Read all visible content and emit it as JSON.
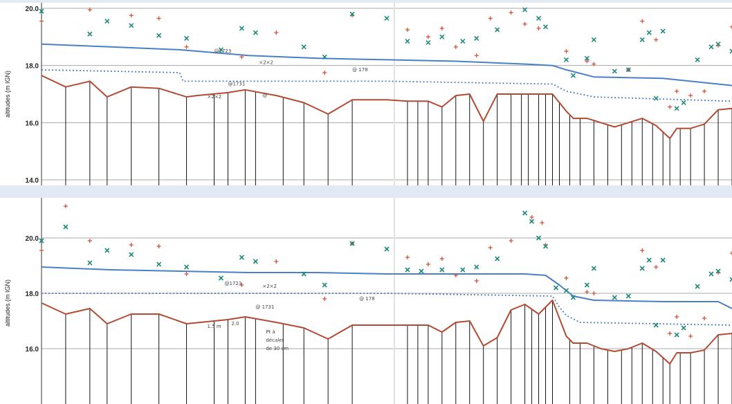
{
  "colors": {
    "background": "#e3e9f3",
    "water_line": "#4a7fc4",
    "dotted_line": "#4a7fc4",
    "ground": "#b24a32",
    "plus_marker": "#d2533a",
    "x_marker": "#1f8a7a",
    "grid": "#a8a8a8",
    "pile": "#111111"
  },
  "chart_data": [
    {
      "type": "line",
      "ylabel": "altitudes (m IGN)",
      "yticks": [
        "14.0",
        "16.0",
        "18.0",
        "20.0"
      ],
      "ylim": [
        14,
        20
      ],
      "xlim": [
        0,
        100
      ],
      "grid": true,
      "series": [
        {
          "style": "solid",
          "color": "#4a7fc4",
          "x": [
            0,
            10,
            20,
            30,
            40,
            50,
            60,
            70,
            74,
            76,
            80,
            90,
            100
          ],
          "y": [
            18.75,
            18.65,
            18.55,
            18.35,
            18.25,
            18.2,
            18.15,
            18.05,
            18.0,
            17.85,
            17.6,
            17.55,
            17.3
          ]
        },
        {
          "style": "dotted",
          "color": "#4a7fc4",
          "x": [
            0,
            20,
            20.5,
            50,
            74,
            76,
            80,
            100
          ],
          "y": [
            17.85,
            17.75,
            17.45,
            17.45,
            17.35,
            17.1,
            16.9,
            16.75
          ]
        },
        {
          "style": "solid",
          "color": "#b24a32",
          "x": [
            0,
            3.5,
            7,
            9.5,
            13,
            17,
            21,
            22.5,
            27,
            29.5,
            34,
            38,
            41.5,
            45,
            50,
            53,
            56,
            58,
            60,
            62,
            64,
            66,
            68,
            70,
            72,
            74,
            76,
            77,
            79,
            81,
            83,
            85,
            87,
            89,
            91,
            92,
            94,
            96,
            98,
            100
          ],
          "y": [
            17.65,
            17.25,
            17.45,
            16.9,
            17.25,
            17.2,
            16.9,
            16.95,
            17.05,
            17.15,
            16.95,
            16.7,
            16.3,
            16.8,
            16.8,
            16.75,
            16.75,
            16.55,
            16.95,
            17.0,
            16.05,
            17.0,
            17.0,
            17.0,
            17.0,
            17.0,
            16.4,
            16.15,
            16.15,
            16.0,
            15.85,
            16.0,
            16.15,
            15.9,
            15.45,
            15.8,
            15.8,
            15.95,
            16.45,
            16.5
          ]
        }
      ],
      "markers": {
        "plus": {
          "color": "#d2533a",
          "x": [
            0,
            7,
            13,
            17,
            21,
            29,
            34,
            41,
            45,
            53,
            56,
            58,
            60,
            63,
            65,
            68,
            70,
            72,
            76,
            79,
            80,
            85,
            87,
            89,
            91,
            92,
            94,
            96,
            98,
            100
          ],
          "y": [
            19.55,
            19.95,
            19.75,
            19.65,
            18.65,
            18.3,
            19.15,
            17.75,
            19.75,
            19.25,
            19.0,
            19.3,
            18.65,
            18.35,
            19.65,
            19.85,
            19.45,
            19.3,
            18.5,
            18.15,
            18.05,
            17.85,
            19.55,
            18.9,
            16.55,
            17.1,
            16.95,
            17.1,
            18.7,
            19.35
          ]
        },
        "x": {
          "color": "#1f8a7a",
          "x": [
            0,
            7,
            9.5,
            13,
            17,
            21,
            26,
            29,
            31,
            38,
            41,
            45,
            50,
            53,
            56,
            58,
            61,
            63,
            66,
            70,
            72,
            73,
            76,
            77,
            79,
            80,
            83,
            85,
            87,
            88,
            89,
            90,
            92,
            93,
            95,
            97,
            98,
            100
          ],
          "y": [
            19.9,
            19.1,
            19.55,
            19.4,
            19.05,
            18.95,
            18.55,
            19.3,
            19.15,
            18.65,
            18.3,
            19.8,
            19.65,
            18.85,
            18.8,
            19.0,
            18.85,
            18.95,
            19.25,
            19.95,
            19.65,
            19.35,
            18.2,
            17.65,
            18.25,
            18.9,
            17.8,
            17.85,
            18.9,
            19.15,
            16.85,
            19.2,
            16.5,
            16.7,
            18.2,
            18.65,
            18.75,
            18.5
          ]
        }
      },
      "piles": {
        "x": [
          3.5,
          7,
          9.5,
          13,
          17,
          21,
          25,
          27,
          29.5,
          31,
          35,
          38,
          41.5,
          45,
          53,
          54.5,
          56,
          58,
          60,
          62,
          64,
          66,
          68,
          69.5,
          70.5,
          72,
          73,
          74,
          75,
          76.5,
          78,
          80,
          82,
          84,
          85.5,
          87,
          88.5,
          90,
          91,
          92.5,
          94,
          96,
          98,
          100
        ],
        "bottom": 14.0
      },
      "annotations": [
        {
          "x": 25,
          "y": 18.45,
          "text": "@1723"
        },
        {
          "x": 31.5,
          "y": 18.05,
          "text": "×2×2"
        },
        {
          "x": 45,
          "y": 17.8,
          "text": "@ 178"
        },
        {
          "x": 24,
          "y": 16.85,
          "text": "×2×2"
        },
        {
          "x": 27,
          "y": 17.3,
          "text": "@1731"
        },
        {
          "x": 32,
          "y": 16.9,
          "text": "@"
        }
      ]
    },
    {
      "type": "line",
      "ylabel": "altitudes (m IGN)",
      "yticks": [
        "16.0",
        "18.0",
        "20.0"
      ],
      "ylim": [
        14,
        21.3
      ],
      "xlim": [
        0,
        100
      ],
      "grid": true,
      "series": [
        {
          "style": "solid",
          "color": "#4a7fc4",
          "x": [
            0,
            10,
            20,
            30,
            40,
            50,
            60,
            70,
            73,
            75,
            77,
            80,
            90,
            98,
            100
          ],
          "y": [
            18.95,
            18.85,
            18.8,
            18.75,
            18.75,
            18.7,
            18.7,
            18.7,
            18.65,
            18.3,
            17.9,
            17.75,
            17.7,
            17.7,
            17.45
          ]
        },
        {
          "style": "dotted",
          "color": "#4a7fc4",
          "x": [
            0,
            50,
            74,
            75,
            76,
            78,
            100
          ],
          "y": [
            18.0,
            18.0,
            17.9,
            17.5,
            17.2,
            16.95,
            16.85
          ]
        },
        {
          "style": "solid",
          "color": "#b24a32",
          "x": [
            0,
            3.5,
            7,
            9.5,
            13,
            17,
            21,
            27,
            29.5,
            34,
            38,
            41.5,
            45,
            50,
            53,
            56,
            58,
            60,
            62,
            64,
            66,
            68,
            70,
            72,
            74,
            76,
            77,
            79,
            81,
            83,
            85,
            87,
            89,
            91,
            92,
            94,
            96,
            98,
            100
          ],
          "y": [
            17.65,
            17.25,
            17.45,
            16.9,
            17.25,
            17.25,
            16.9,
            17.05,
            17.15,
            16.95,
            16.75,
            16.35,
            16.85,
            16.85,
            16.85,
            16.85,
            16.6,
            16.95,
            17.0,
            16.1,
            16.4,
            17.4,
            17.6,
            17.25,
            17.75,
            16.45,
            16.2,
            16.2,
            16.0,
            15.9,
            16.0,
            16.2,
            15.9,
            15.45,
            15.85,
            15.85,
            15.95,
            16.5,
            16.55
          ]
        }
      ],
      "markers": {
        "plus": {
          "color": "#d2533a",
          "x": [
            0,
            3.5,
            7,
            13,
            17,
            21,
            29,
            34,
            41,
            45,
            53,
            56,
            58,
            60,
            63,
            65,
            68,
            71,
            72.5,
            73,
            76,
            79,
            80,
            87,
            89,
            91,
            92,
            94,
            96,
            98,
            100
          ],
          "y": [
            19.55,
            21.15,
            19.9,
            19.75,
            19.7,
            18.7,
            18.3,
            19.15,
            17.8,
            19.8,
            19.3,
            19.05,
            19.25,
            18.65,
            18.45,
            19.65,
            19.9,
            20.75,
            20.55,
            19.75,
            18.55,
            18.05,
            18.0,
            19.55,
            18.95,
            16.55,
            17.15,
            16.45,
            17.1,
            18.75,
            19.45
          ]
        },
        "x": {
          "color": "#1f8a7a",
          "x": [
            0,
            3.5,
            7,
            9.5,
            13,
            17,
            21,
            26,
            29,
            31,
            38,
            41,
            45,
            50,
            53,
            55,
            58,
            61,
            63,
            66,
            70,
            71,
            72,
            73,
            74.5,
            76,
            77,
            79,
            80,
            83,
            85,
            87,
            88,
            89,
            90,
            92,
            93,
            95,
            97,
            98,
            100
          ],
          "y": [
            19.9,
            20.4,
            19.1,
            19.55,
            19.4,
            19.05,
            18.95,
            18.55,
            19.3,
            19.15,
            18.7,
            18.3,
            19.8,
            19.6,
            18.85,
            18.8,
            18.85,
            18.85,
            18.95,
            19.25,
            20.9,
            20.6,
            20.0,
            19.7,
            18.2,
            18.1,
            17.85,
            18.3,
            18.9,
            17.85,
            17.9,
            18.9,
            19.2,
            16.85,
            19.2,
            16.5,
            16.75,
            18.25,
            18.7,
            18.8,
            18.5
          ]
        }
      },
      "piles": {
        "x": [
          3.5,
          7,
          9.5,
          13,
          17,
          21,
          25,
          27,
          29.5,
          31,
          35,
          38,
          41.5,
          45,
          53,
          54.5,
          56,
          58,
          60,
          62,
          64,
          66,
          68,
          70,
          71,
          72,
          73,
          74,
          76.5,
          78,
          80,
          82,
          84,
          85.5,
          87,
          88.5,
          90,
          91,
          92.5,
          94,
          96,
          98,
          100
        ],
        "bottom": 14.0
      },
      "annotations": [
        {
          "x": 26.5,
          "y": 18.3,
          "text": "@1723"
        },
        {
          "x": 32,
          "y": 18.2,
          "text": "×2×2"
        },
        {
          "x": 46,
          "y": 17.75,
          "text": "@ 178"
        },
        {
          "x": 24,
          "y": 16.75,
          "text": "1.5 m"
        },
        {
          "x": 27.5,
          "y": 16.85,
          "text": "2.0"
        },
        {
          "x": 31,
          "y": 17.45,
          "text": "@ 1731"
        },
        {
          "x": 32.5,
          "y": 16.55,
          "text": "Pt à"
        },
        {
          "x": 32.5,
          "y": 16.25,
          "text": "décaler"
        },
        {
          "x": 32.5,
          "y": 15.95,
          "text": "de 30 cm"
        }
      ]
    }
  ]
}
